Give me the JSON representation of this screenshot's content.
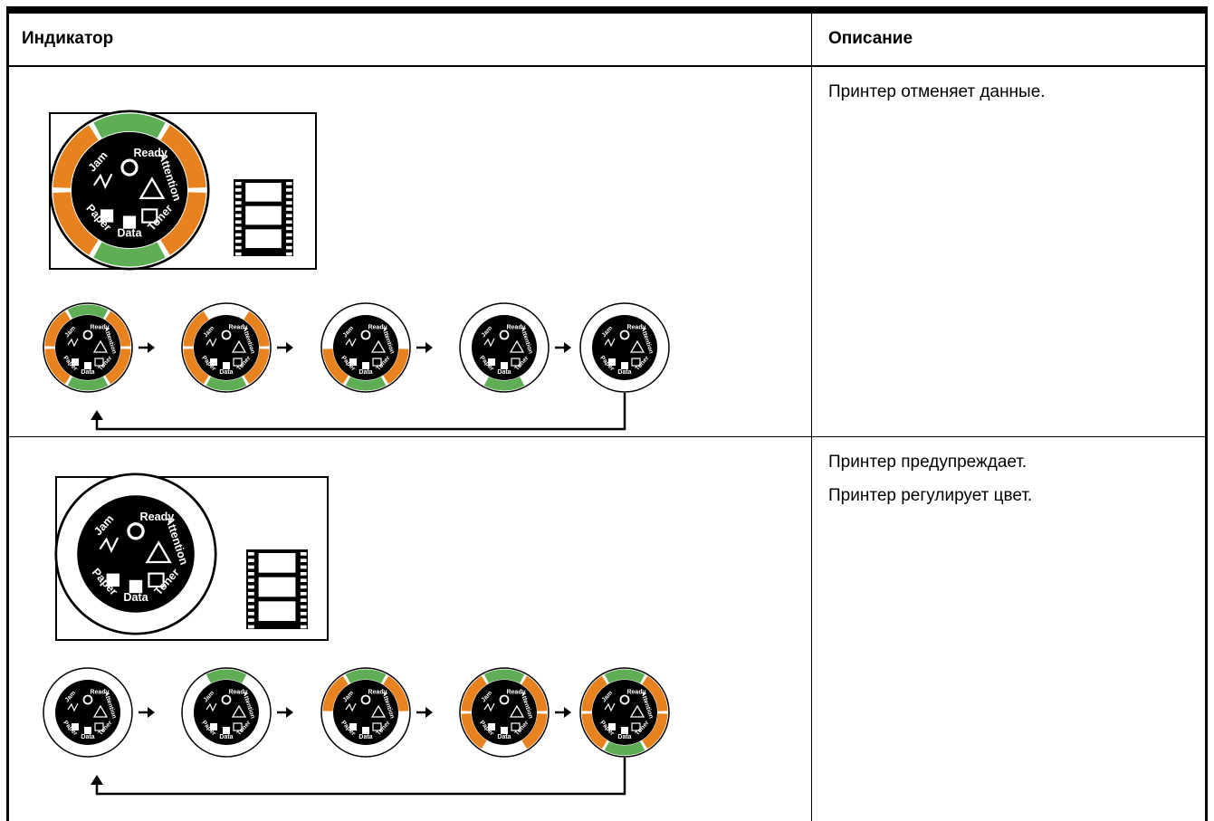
{
  "header": {
    "indicator": "Индикатор",
    "description": "Описание"
  },
  "rows": [
    {
      "description": [
        "Принтер отменяет данные."
      ]
    },
    {
      "description": [
        "Принтер предупреждает.",
        "Принтер регулирует цвет."
      ]
    }
  ],
  "indicator_labels": {
    "ready": "Ready",
    "attention": "Attention",
    "toner": "Toner",
    "data": "Data",
    "paper": "Paper",
    "jam": "Jam"
  }
}
